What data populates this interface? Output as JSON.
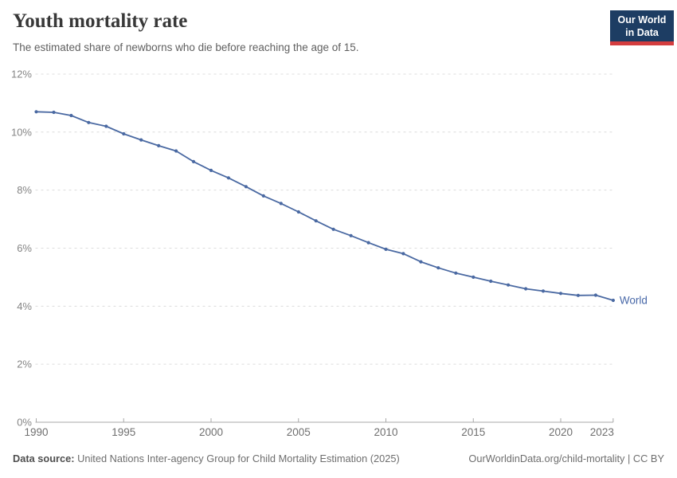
{
  "header": {
    "title": "Youth mortality rate",
    "subtitle": "The estimated share of newborns who die before reaching the age of 15.",
    "logo": {
      "line1": "Our World",
      "line2": "in Data"
    }
  },
  "chart_data": {
    "type": "line",
    "title": "Youth mortality rate",
    "subtitle": "The estimated share of newborns who die before reaching the age of 15.",
    "xlabel": "",
    "ylabel": "",
    "xlim": [
      1990,
      2023
    ],
    "ylim": [
      0,
      12
    ],
    "grid": "horizontal-dashed",
    "legend_position": "end-of-line",
    "end_label": "World",
    "x_ticks": [
      {
        "value": 1990,
        "label": "1990"
      },
      {
        "value": 1995,
        "label": "1995"
      },
      {
        "value": 2000,
        "label": "2000"
      },
      {
        "value": 2005,
        "label": "2005"
      },
      {
        "value": 2010,
        "label": "2010"
      },
      {
        "value": 2015,
        "label": "2015"
      },
      {
        "value": 2020,
        "label": "2020"
      },
      {
        "value": 2023,
        "label": "2023"
      }
    ],
    "y_ticks": [
      {
        "value": 0,
        "label": "0%"
      },
      {
        "value": 2,
        "label": "2%"
      },
      {
        "value": 4,
        "label": "4%"
      },
      {
        "value": 6,
        "label": "6%"
      },
      {
        "value": 8,
        "label": "8%"
      },
      {
        "value": 10,
        "label": "10%"
      },
      {
        "value": 12,
        "label": "12%"
      }
    ],
    "series": [
      {
        "name": "World",
        "unit": "%",
        "x": [
          1990,
          1991,
          1992,
          1993,
          1994,
          1995,
          1996,
          1997,
          1998,
          1999,
          2000,
          2001,
          2002,
          2003,
          2004,
          2005,
          2006,
          2007,
          2008,
          2009,
          2010,
          2011,
          2012,
          2013,
          2014,
          2015,
          2016,
          2017,
          2018,
          2019,
          2020,
          2021,
          2022,
          2023
        ],
        "values": [
          10.7,
          10.68,
          10.57,
          10.33,
          10.2,
          9.94,
          9.73,
          9.53,
          9.35,
          8.98,
          8.68,
          8.42,
          8.12,
          7.8,
          7.54,
          7.25,
          6.94,
          6.65,
          6.43,
          6.19,
          5.96,
          5.81,
          5.53,
          5.32,
          5.14,
          5.0,
          4.86,
          4.73,
          4.6,
          4.52,
          4.44,
          4.37,
          4.38,
          4.2
        ]
      }
    ]
  },
  "footer": {
    "datasource_label": "Data source:",
    "datasource_text": " United Nations Inter-agency Group for Child Mortality Estimation (2025)",
    "link": "OurWorldinData.org/child-mortality",
    "separator": " | ",
    "license": "CC BY"
  },
  "colors": {
    "line": "#4a69a2",
    "end_label": "#4868a8",
    "gridline": "#dcdcdc",
    "axis": "#a8a8a8",
    "y_tick_label": "#858585",
    "x_tick_label": "#6f6f6f",
    "logo_bg": "#1d3d63",
    "logo_red": "#d43d3f"
  }
}
